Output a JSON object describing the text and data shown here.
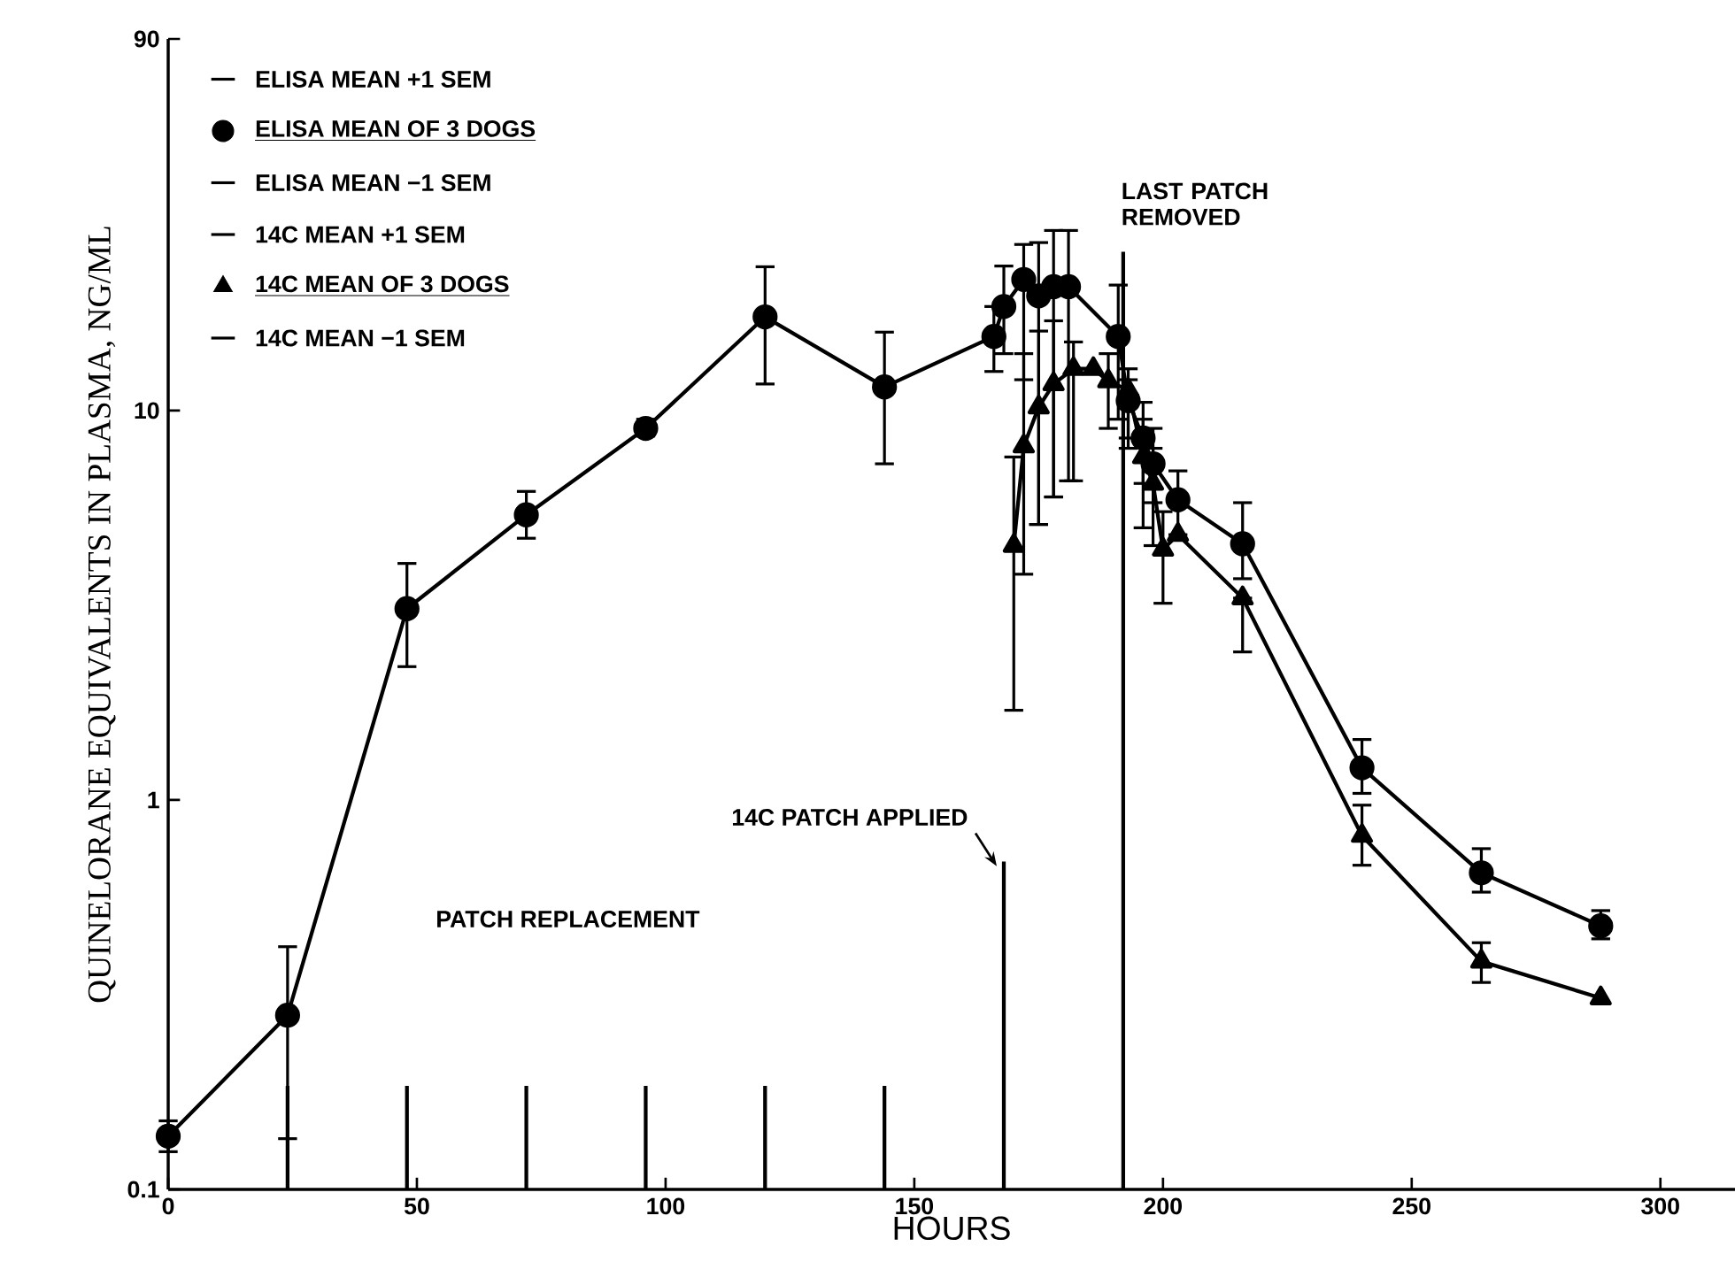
{
  "chart_data": {
    "type": "line",
    "xlabel": "HOURS",
    "ylabel": "QUINELORANE EQUIVALENTS IN PLASMA, NG/ML",
    "log": "y",
    "xlim": [
      0,
      315
    ],
    "ylim": [
      0.1,
      90
    ],
    "xticks": [
      0,
      50,
      100,
      150,
      200,
      250,
      300
    ],
    "yticks": [
      0.1,
      1,
      10,
      90
    ],
    "grid": false,
    "legend": "top left",
    "series": [
      {
        "name": "ELISA MEAN OF 3 DOGS",
        "color": "#000000",
        "marker": "circle",
        "x": [
          0,
          24,
          48,
          72,
          96,
          120,
          144,
          166,
          168,
          172,
          175,
          178,
          181,
          191,
          193,
          196,
          198,
          203,
          216,
          240,
          264,
          288
        ],
        "values": [
          0.137,
          0.28,
          3.1,
          5.4,
          9.0,
          17.4,
          11.5,
          15.5,
          18.5,
          21.7,
          19.7,
          20.8,
          20.8,
          15.5,
          10.6,
          8.5,
          7.3,
          5.9,
          4.55,
          1.21,
          0.65,
          0.475
        ],
        "errors": [
          [
            0.125,
            0.15
          ],
          [
            0.135,
            0.42
          ],
          [
            2.2,
            4.05
          ],
          [
            4.7,
            6.2
          ],
          [
            8.6,
            9.5
          ],
          [
            11.7,
            23.4
          ],
          [
            7.3,
            15.9
          ],
          [
            12.6,
            18.5
          ],
          [
            14,
            23.5
          ],
          [
            12,
            26.7
          ],
          [
            5.1,
            27
          ],
          [
            6,
            29
          ],
          [
            6.6,
            29
          ],
          [
            9.5,
            21
          ],
          [
            8.5,
            12.8
          ],
          [
            6.5,
            10.5
          ],
          [
            5.8,
            9
          ],
          [
            4.8,
            7
          ],
          [
            3.7,
            5.8
          ],
          [
            1.04,
            1.43
          ],
          [
            0.58,
            0.75
          ],
          [
            0.44,
            0.52
          ]
        ]
      },
      {
        "name": "14C MEAN OF 3 DOGS",
        "color": "#000000",
        "marker": "triangle",
        "x": [
          170,
          172,
          175,
          178,
          182,
          186,
          189,
          193,
          196,
          198,
          200,
          203,
          216,
          240,
          264,
          288
        ],
        "values": [
          4.5,
          8.1,
          10.2,
          11.7,
          12.8,
          12.8,
          11.9,
          11.3,
          7.6,
          6.5,
          4.4,
          4.8,
          3.3,
          0.81,
          0.385,
          0.31
        ],
        "errors": [
          [
            1.7,
            7.6
          ],
          [
            3.8,
            14
          ],
          [
            5.1,
            16
          ],
          [
            6,
            17
          ],
          [
            6.6,
            15
          ],
          null,
          [
            9,
            14
          ],
          [
            8,
            12
          ],
          [
            5,
            9.5
          ],
          [
            4.5,
            8
          ],
          [
            3.2,
            5.5
          ],
          null,
          [
            2.4,
            3.3
          ],
          [
            0.68,
            0.97
          ],
          [
            0.34,
            0.43
          ],
          null
        ]
      }
    ],
    "ref_lines": [
      {
        "axis": "x",
        "value": 24
      },
      {
        "axis": "x",
        "value": 48
      },
      {
        "axis": "x",
        "value": 72
      },
      {
        "axis": "x",
        "value": 96
      },
      {
        "axis": "x",
        "value": 120
      },
      {
        "axis": "x",
        "value": 144
      },
      {
        "axis": "x",
        "value": 168,
        "label": "14C PATCH APPLIED"
      },
      {
        "axis": "x",
        "value": 192,
        "label": "LAST PATCH REMOVED"
      }
    ],
    "annotations": [
      "ELISA MEAN +1 SEM",
      "ELISA MEAN −1 SEM",
      "14C MEAN +1 SEM",
      "14C MEAN −1 SEM",
      "PATCH REPLACEMENT"
    ]
  }
}
